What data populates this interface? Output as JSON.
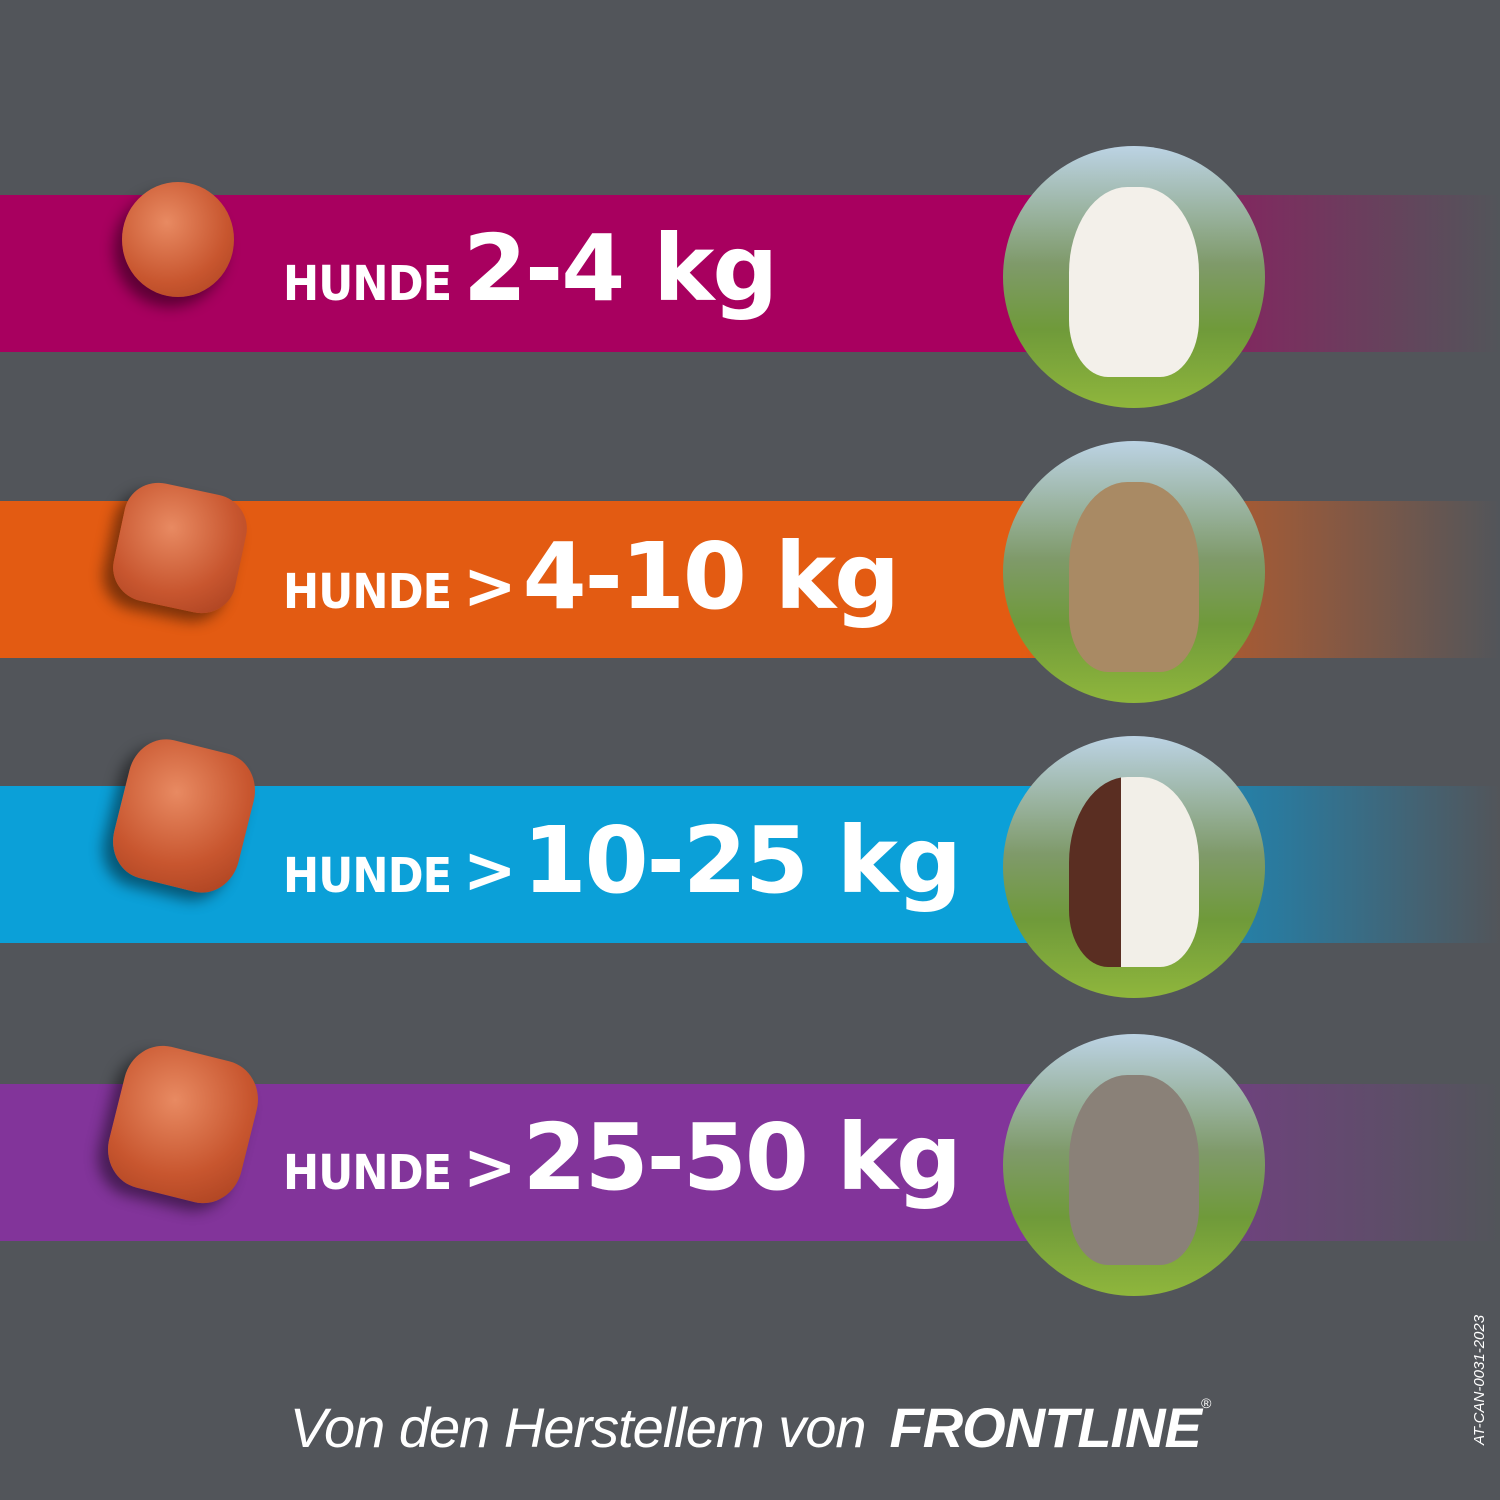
{
  "rows": [
    {
      "prefix": "HUNDE",
      "gt": "",
      "weight": "2-4 kg",
      "color": "#a8005f",
      "dog": "maltese-dog-photo",
      "dog_color": "#f3f0ea"
    },
    {
      "prefix": "HUNDE",
      "gt": ">",
      "weight": "4-10 kg",
      "color": "#e35b12",
      "dog": "terrier-dog-photo",
      "dog_color": "#a98a64"
    },
    {
      "prefix": "HUNDE",
      "gt": ">",
      "weight": "10-25 kg",
      "color": "#0ba0d8",
      "dog": "spaniel-dog-photo",
      "dog_color": "#5a2e22"
    },
    {
      "prefix": "HUNDE",
      "gt": ">",
      "weight": "25-50 kg",
      "color": "#82349a",
      "dog": "weimaraner-dog-photo",
      "dog_color": "#8a8178"
    }
  ],
  "footer": {
    "text": "Von den Herstellern von",
    "brand": "FRONTLINE",
    "reg": "®"
  },
  "code": "AT-CAN-0031-2023",
  "background": "#52555a"
}
